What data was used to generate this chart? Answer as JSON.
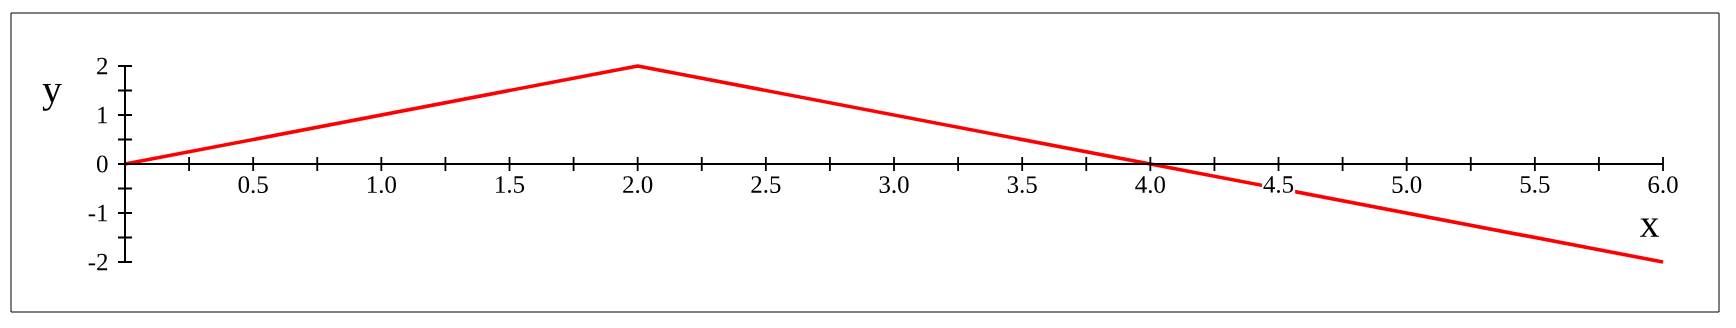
{
  "chart_data": {
    "type": "line",
    "xlabel": "x",
    "ylabel": "y",
    "x": [
      0,
      2,
      4,
      6
    ],
    "values": [
      0,
      2,
      0,
      -2
    ],
    "color": "#ff0000",
    "xlim": [
      0,
      6
    ],
    "ylim": [
      -2,
      2
    ],
    "xticks": [
      {
        "value": 0.25,
        "label": null
      },
      {
        "value": 0.5,
        "label": "0.5"
      },
      {
        "value": 0.75,
        "label": null
      },
      {
        "value": 1,
        "label": "1.0"
      },
      {
        "value": 1.25,
        "label": null
      },
      {
        "value": 1.5,
        "label": "1.5"
      },
      {
        "value": 1.75,
        "label": null
      },
      {
        "value": 2,
        "label": "2.0"
      },
      {
        "value": 2.25,
        "label": null
      },
      {
        "value": 2.5,
        "label": "2.5"
      },
      {
        "value": 2.75,
        "label": null
      },
      {
        "value": 3,
        "label": "3.0"
      },
      {
        "value": 3.25,
        "label": null
      },
      {
        "value": 3.5,
        "label": "3.5"
      },
      {
        "value": 3.75,
        "label": null
      },
      {
        "value": 4,
        "label": "4.0"
      },
      {
        "value": 4.25,
        "label": null
      },
      {
        "value": 4.5,
        "label": "4.5"
      },
      {
        "value": 4.75,
        "label": null
      },
      {
        "value": 5,
        "label": "5.0"
      },
      {
        "value": 5.25,
        "label": null
      },
      {
        "value": 5.5,
        "label": "5.5"
      },
      {
        "value": 5.75,
        "label": null
      },
      {
        "value": 6,
        "label": "6.0"
      }
    ],
    "yticks": [
      -2,
      {
        "value": -1.5,
        "label": null
      },
      -1,
      {
        "value": -0.5,
        "label": null
      },
      0,
      {
        "value": 0.5,
        "label": null
      },
      1,
      {
        "value": 1.5,
        "label": null
      },
      2
    ]
  }
}
